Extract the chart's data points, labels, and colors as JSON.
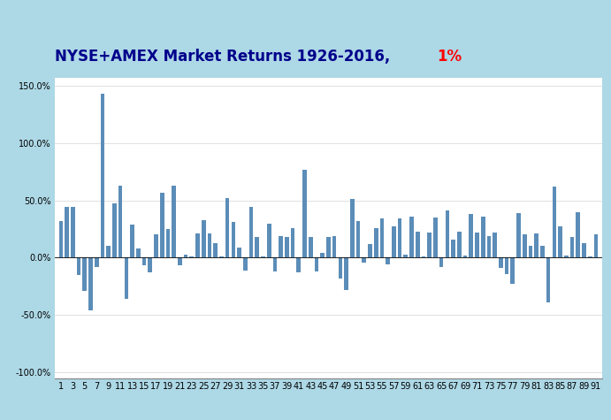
{
  "title_part1": "NYSE+AMEX Market Returns 1926-2016, ",
  "title_part2": "1%",
  "title_color1": "#00008B",
  "title_color2": "red",
  "bg_outer": "#ADD8E6",
  "bar_color": "#5B8DB8",
  "header_bar1_color": "#C8B400",
  "header_bar2_color": "#3B006B",
  "ylim": [
    -1.05,
    1.57
  ],
  "yticks": [
    -1.0,
    -0.5,
    0.0,
    0.5,
    1.0,
    1.5
  ],
  "ytick_labels": [
    "-100.0%",
    "-50.0%",
    "0.0%",
    "50.0%",
    "100.0%",
    "150.0%"
  ],
  "returns": [
    0.32,
    0.44,
    0.44,
    -0.15,
    -0.29,
    -0.46,
    -0.08,
    1.43,
    0.1,
    0.47,
    0.63,
    -0.36,
    0.29,
    0.08,
    -0.07,
    -0.13,
    0.2,
    0.57,
    0.25,
    0.63,
    -0.07,
    0.03,
    0.01,
    0.21,
    0.33,
    0.21,
    0.13,
    0.01,
    0.52,
    0.31,
    0.09,
    -0.11,
    0.44,
    0.18,
    0.01,
    0.3,
    -0.12,
    0.19,
    0.18,
    0.26,
    -0.13,
    0.77,
    0.18,
    -0.12,
    0.04,
    0.18,
    0.19,
    -0.18,
    -0.28,
    0.51,
    0.32,
    -0.04,
    0.12,
    0.26,
    0.34,
    -0.06,
    0.27,
    0.34,
    0.03,
    0.36,
    0.23,
    0.01,
    0.22,
    0.35,
    -0.08,
    0.41,
    0.16,
    0.23,
    0.02,
    0.38,
    0.22,
    0.36,
    0.19,
    0.22,
    -0.09,
    -0.14,
    -0.23,
    0.39,
    0.2,
    0.1,
    0.21,
    0.1,
    -0.39,
    0.62,
    0.27,
    0.02,
    0.18,
    0.4,
    0.13,
    0.01,
    0.2
  ],
  "title_fontsize": 12,
  "tick_fontsize": 7
}
